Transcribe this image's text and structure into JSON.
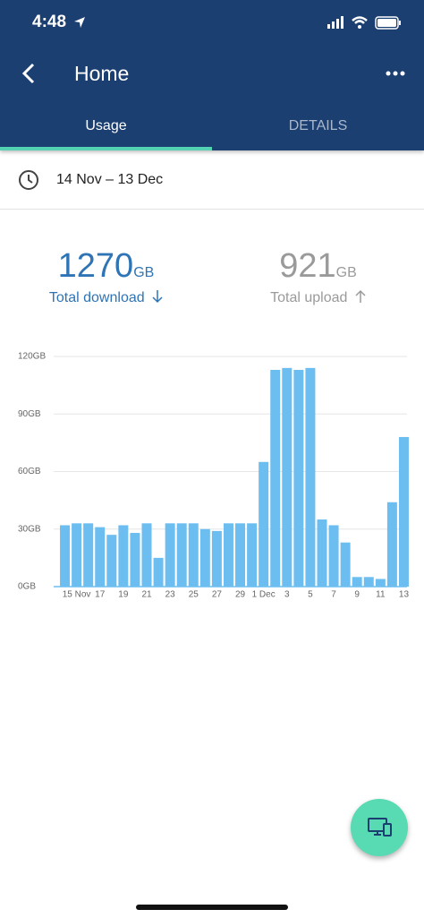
{
  "status": {
    "time": "4:48"
  },
  "header": {
    "title": "Home"
  },
  "tabs": [
    "Usage",
    "DETAILS"
  ],
  "date_range": "14 Nov – 13 Dec",
  "stats": [
    {
      "value": 1270,
      "unit": "GB",
      "label": "Total download"
    },
    {
      "value": 921,
      "unit": "GB",
      "label": "Total upload"
    }
  ],
  "chart_data": {
    "type": "bar",
    "categories": [
      null,
      "15 Nov",
      null,
      "17",
      null,
      "19",
      null,
      "21",
      null,
      "23",
      null,
      "25",
      null,
      "27",
      null,
      "29",
      null,
      "1 Dec",
      null,
      "3",
      null,
      "5",
      null,
      "7",
      null,
      "9",
      null,
      "11",
      null,
      "13"
    ],
    "values": [
      32,
      33,
      33,
      31,
      27,
      32,
      28,
      33,
      15,
      33,
      33,
      33,
      30,
      29,
      33,
      33,
      33,
      65,
      113,
      114,
      113,
      114,
      35,
      32,
      23,
      5,
      5,
      4,
      44,
      78
    ],
    "color": "#6cbdf0",
    "ylim": [
      0,
      120
    ],
    "yticks": [
      {
        "value": 0,
        "label": "0GB"
      },
      {
        "value": 30,
        "label": "30GB"
      },
      {
        "value": 60,
        "label": "60GB"
      },
      {
        "value": 90,
        "label": "90GB"
      },
      {
        "value": 120,
        "label": "120GB"
      }
    ],
    "grid": true
  }
}
